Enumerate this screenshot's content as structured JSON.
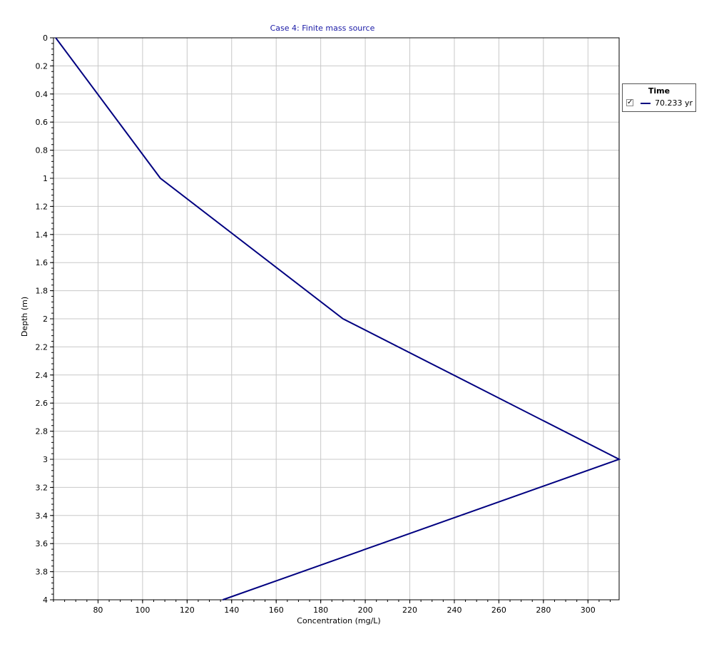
{
  "chart_data": {
    "type": "line",
    "title": "Case 4: Finite mass source",
    "xlabel": "Concentration (mg/L)",
    "ylabel": "Depth (m)",
    "xlim": [
      60,
      314
    ],
    "ylim": [
      0,
      4
    ],
    "y_inverted": true,
    "x_ticks": [
      "80",
      "100",
      "120",
      "140",
      "160",
      "180",
      "200",
      "220",
      "240",
      "260",
      "280",
      "300"
    ],
    "y_ticks": [
      "0",
      "0.2",
      "0.4",
      "0.6",
      "0.8",
      "1",
      "1.2",
      "1.4",
      "1.6",
      "1.8",
      "2",
      "2.2",
      "2.4",
      "2.6",
      "2.8",
      "3",
      "3.2",
      "3.4",
      "3.6",
      "3.8",
      "4"
    ],
    "grid": true,
    "legend": {
      "title": "Time",
      "placement": "right",
      "checked": true
    },
    "series": [
      {
        "name": "70.233 yr",
        "color": "#000080",
        "points": [
          {
            "x": 61,
            "y": 0
          },
          {
            "x": 108,
            "y": 1
          },
          {
            "x": 190,
            "y": 2
          },
          {
            "x": 314,
            "y": 3
          },
          {
            "x": 136,
            "y": 4
          }
        ]
      }
    ]
  }
}
